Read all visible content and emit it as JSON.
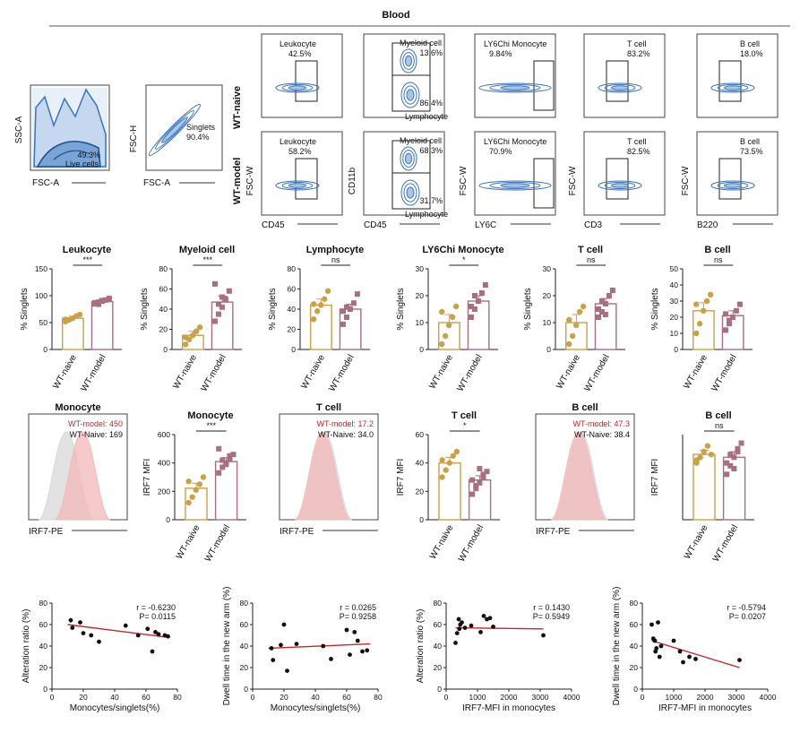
{
  "figure": {
    "title": "Blood",
    "row_labels": [
      "WT-naive",
      "WT-model"
    ],
    "colors": {
      "naive": "#c9a14a",
      "model": "#a86f7f",
      "flow": "#3b74b8",
      "flow_dark": "#1a4f8f",
      "red_text": "#c0282d",
      "regression": "#c0282d",
      "hist_red": "#f3b8b8",
      "hist_gray": "#d8d8d8"
    }
  },
  "gating_pre": [
    {
      "xlabel": "FSC-A",
      "ylabel": "SSC-A",
      "gate": "Live cells",
      "value": "49.3%"
    },
    {
      "xlabel": "FSC-A",
      "ylabel": "FSC-H",
      "gate": "Singlets",
      "value": "90.4%"
    }
  ],
  "gating": [
    {
      "xlabel": "CD45",
      "ylabel": "FSC-W",
      "cells": [
        {
          "gate": "Leukocyte",
          "value": "42.5%"
        },
        {
          "gate": "Leukocyte",
          "value": "58.2%"
        }
      ]
    },
    {
      "xlabel": "CD45",
      "ylabel": "CD11b",
      "cells": [
        {
          "gate": "Myeloid cell",
          "value": "13.6%",
          "gate2": "Lymphocyte",
          "value2": "86.4%"
        },
        {
          "gate": "Myeloid cell",
          "value": "68.3%",
          "gate2": "Lymphocyte",
          "value2": "31.7%"
        }
      ]
    },
    {
      "xlabel": "LY6C",
      "ylabel": "FSC-W",
      "cells": [
        {
          "gate": "LY6Chi Monocyte",
          "value": "9.84%"
        },
        {
          "gate": "LY6Chi Monocyte",
          "value": "70.9%"
        }
      ]
    },
    {
      "xlabel": "CD3",
      "ylabel": "FSC-W",
      "cells": [
        {
          "gate": "T cell",
          "value": "83.2%"
        },
        {
          "gate": "T cell",
          "value": "82.5%"
        }
      ]
    },
    {
      "xlabel": "B220",
      "ylabel": "FSC-W",
      "cells": [
        {
          "gate": "B cell",
          "value": "18.0%"
        },
        {
          "gate": "B cell",
          "value": "73.5%"
        }
      ]
    }
  ],
  "bar_charts": [
    {
      "title": "Leukocyte",
      "ylabel": "% Singlets",
      "ylim": [
        0,
        150
      ],
      "yticks": [
        0,
        50,
        100,
        150
      ],
      "sig": "***",
      "categories": [
        "WT-naive",
        "WT-model"
      ],
      "values": [
        58,
        89
      ],
      "errors": [
        4,
        3
      ],
      "points": [
        [
          52,
          55,
          58,
          62,
          65,
          56
        ],
        [
          85,
          88,
          90,
          92,
          95,
          87,
          84,
          91
        ]
      ]
    },
    {
      "title": "Myeloid cell",
      "ylabel": "% Singlets",
      "ylim": [
        0,
        80
      ],
      "yticks": [
        0,
        20,
        40,
        60,
        80
      ],
      "sig": "***",
      "categories": [
        "WT-naive",
        "WT-model"
      ],
      "values": [
        14,
        47
      ],
      "errors": [
        4,
        6
      ],
      "points": [
        [
          5,
          10,
          14,
          18,
          22,
          12
        ],
        [
          28,
          35,
          42,
          50,
          58,
          65,
          45,
          52
        ]
      ]
    },
    {
      "title": "Lymphocyte",
      "ylabel": "% Singlets",
      "ylim": [
        0,
        80
      ],
      "yticks": [
        0,
        20,
        40,
        60,
        80
      ],
      "sig": "ns",
      "categories": [
        "WT-naive",
        "WT-model"
      ],
      "values": [
        44,
        40
      ],
      "errors": [
        6,
        5
      ],
      "points": [
        [
          30,
          38,
          44,
          50,
          58,
          45
        ],
        [
          25,
          32,
          40,
          46,
          55,
          38,
          42
        ]
      ]
    },
    {
      "title": "LY6Chi Monocyte",
      "ylabel": "% Singlets",
      "ylim": [
        0,
        30
      ],
      "yticks": [
        0,
        10,
        20,
        30
      ],
      "sig": "*",
      "categories": [
        "WT-naive",
        "WT-model"
      ],
      "values": [
        10,
        18
      ],
      "errors": [
        3,
        2
      ],
      "points": [
        [
          2,
          5,
          9,
          12,
          16,
          14
        ],
        [
          12,
          15,
          18,
          21,
          24,
          16,
          20
        ]
      ]
    },
    {
      "title": "T cell",
      "ylabel": "% Singlets",
      "ylim": [
        0,
        30
      ],
      "yticks": [
        0,
        10,
        20,
        30
      ],
      "sig": "ns",
      "categories": [
        "WT-naive",
        "WT-model"
      ],
      "values": [
        10,
        17
      ],
      "errors": [
        3,
        2
      ],
      "points": [
        [
          2,
          5,
          9,
          14,
          16,
          11
        ],
        [
          12,
          14,
          17,
          20,
          22,
          15,
          18,
          13
        ]
      ]
    },
    {
      "title": "B cell",
      "ylabel": "% Singlets",
      "ylim": [
        0,
        50
      ],
      "yticks": [
        0,
        10,
        20,
        30,
        40,
        50
      ],
      "sig": "ns",
      "categories": [
        "WT-naive",
        "WT-model"
      ],
      "values": [
        24,
        21
      ],
      "errors": [
        5,
        3
      ],
      "points": [
        [
          10,
          16,
          24,
          30,
          34,
          28
        ],
        [
          12,
          16,
          20,
          24,
          28,
          22,
          18
        ]
      ]
    },
    {
      "title": "Monocyte",
      "ylabel": "IRF7 MFI",
      "ylim": [
        0,
        600
      ],
      "yticks": [
        0,
        200,
        400,
        600
      ],
      "sig": "***",
      "categories": [
        "WT-naive",
        "WT-model"
      ],
      "values": [
        222,
        410
      ],
      "errors": [
        35,
        28
      ],
      "points": [
        [
          120,
          160,
          210,
          250,
          300,
          270
        ],
        [
          330,
          370,
          400,
          430,
          460,
          500,
          420,
          390,
          450
        ]
      ]
    },
    {
      "title": "T cell",
      "ylabel": "IRF7 MFI",
      "ylim": [
        0,
        60
      ],
      "yticks": [
        0,
        20,
        40,
        60
      ],
      "sig": "*",
      "categories": [
        "WT-naive",
        "WT-model"
      ],
      "values": [
        40,
        28
      ],
      "errors": [
        4,
        3
      ],
      "points": [
        [
          30,
          35,
          40,
          45,
          48,
          42
        ],
        [
          18,
          22,
          26,
          30,
          34,
          28,
          24,
          36,
          32
        ]
      ]
    },
    {
      "title": "B cell",
      "ylabel": "IRF7 MFI",
      "ylim": [
        0,
        60
      ],
      "yticks": [],
      "sig": "ns",
      "categories": [
        "WT-naive",
        "WT-model"
      ],
      "values": [
        46,
        44
      ],
      "errors": [
        3,
        4
      ],
      "points": [
        [
          40,
          44,
          48,
          52,
          46,
          42
        ],
        [
          32,
          38,
          44,
          50,
          54,
          40,
          46,
          36,
          48
        ]
      ]
    }
  ],
  "histograms": [
    {
      "title": "Monocyte",
      "xlabel": "IRF7-PE",
      "model_label": "WT-model: 450",
      "naive_label": "WT-Naive: 169"
    },
    {
      "title": "T cell",
      "xlabel": "IRF7-PE",
      "model_label": "WT-model: 17.2",
      "naive_label": "WT-Naive: 34.0"
    },
    {
      "title": "B cell",
      "xlabel": "IRF7-PE",
      "model_label": "WT-model: 47.3",
      "naive_label": "WT-Naive: 38.4"
    }
  ],
  "chart_data": [
    {
      "type": "scatter",
      "xlabel": "Monocytes/singlets(%)",
      "ylabel": "Alteration ratio (%)",
      "xlim": [
        0,
        80
      ],
      "ylim": [
        0,
        80
      ],
      "xticks": [
        0,
        20,
        40,
        60,
        80
      ],
      "yticks": [
        0,
        20,
        40,
        60,
        80
      ],
      "r": "r = -0.6230",
      "p": "P= 0.0115",
      "fit": [
        [
          10,
          60
        ],
        [
          75,
          48
        ]
      ],
      "x": [
        12,
        13,
        18,
        20,
        25,
        30,
        47,
        55,
        61,
        64,
        66,
        68,
        72,
        74
      ],
      "y": [
        64,
        57,
        62,
        52,
        50,
        44,
        59,
        50,
        56,
        35,
        53,
        51,
        50,
        49
      ]
    },
    {
      "type": "scatter",
      "xlabel": "Monocytes/singlets(%)",
      "ylabel": "Dwell time in the new arm (%)",
      "xlim": [
        0,
        80
      ],
      "ylim": [
        0,
        80
      ],
      "xticks": [
        0,
        20,
        40,
        60,
        80
      ],
      "yticks": [
        0,
        20,
        40,
        60,
        80
      ],
      "r": "r = 0.0265",
      "p": "P= 0.9258",
      "fit": [
        [
          10,
          38
        ],
        [
          75,
          42
        ]
      ],
      "x": [
        12,
        13,
        18,
        20,
        22,
        28,
        45,
        50,
        60,
        62,
        65,
        67,
        70,
        73
      ],
      "y": [
        38,
        27,
        41,
        60,
        17,
        42,
        40,
        28,
        55,
        32,
        53,
        45,
        35,
        36
      ]
    },
    {
      "type": "scatter",
      "xlabel": "IRF7-MFI in monocytes",
      "ylabel": "Alteration ratio (%)",
      "xlim": [
        0,
        4000
      ],
      "ylim": [
        0,
        80
      ],
      "xticks": [
        0,
        1000,
        2000,
        3000,
        4000
      ],
      "yticks": [
        0,
        20,
        40,
        60,
        80
      ],
      "r": "r = 0.1430",
      "p": "P= 0.5949",
      "fit": [
        [
          300,
          57
        ],
        [
          3100,
          56
        ]
      ],
      "x": [
        300,
        350,
        400,
        420,
        450,
        500,
        600,
        800,
        1100,
        1200,
        1300,
        1400,
        1500,
        3100
      ],
      "y": [
        43,
        52,
        65,
        56,
        60,
        62,
        57,
        59,
        53,
        68,
        65,
        66,
        58,
        50
      ]
    },
    {
      "type": "scatter",
      "xlabel": "IRF7-MFI in monocytes",
      "ylabel": "Dwell time in the new arm (%)",
      "xlim": [
        0,
        4000
      ],
      "ylim": [
        0,
        80
      ],
      "xticks": [
        0,
        1000,
        2000,
        3000,
        4000
      ],
      "yticks": [
        0,
        20,
        40,
        60,
        80
      ],
      "r": "r = -0.5794",
      "p": "P= 0.0207",
      "fit": [
        [
          300,
          45
        ],
        [
          3100,
          20
        ]
      ],
      "x": [
        300,
        350,
        400,
        420,
        450,
        500,
        550,
        600,
        1000,
        1200,
        1300,
        1500,
        1700,
        3100
      ],
      "y": [
        60,
        47,
        45,
        35,
        38,
        62,
        30,
        40,
        45,
        35,
        25,
        30,
        28,
        27
      ]
    }
  ]
}
